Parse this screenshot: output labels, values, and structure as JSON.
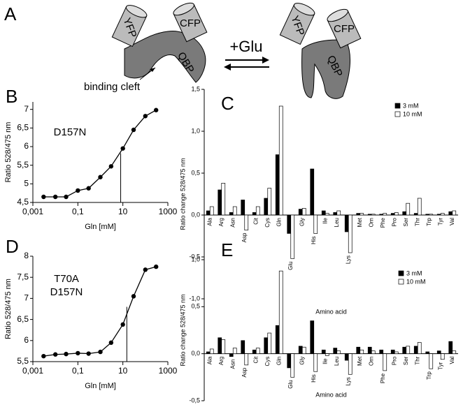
{
  "diagram": {
    "panel": "A",
    "left": {
      "yfp": "YFP",
      "cfp": "CFP",
      "qbp": "QBP",
      "cleft": "binding cleft"
    },
    "reaction": "+Glu",
    "right": {
      "yfp": "YFP",
      "cfp": "CFP",
      "qbp": "QBP"
    }
  },
  "chart_data": [
    {
      "type": "scatter",
      "panel": "B",
      "annotation": [
        "D157N"
      ],
      "xlabel": "Gln [mM]",
      "ylabel": "Ratio 528/475 nm",
      "log_x": true,
      "color": "#000000",
      "x": [
        0.003,
        0.01,
        0.03,
        0.1,
        0.3,
        1,
        3,
        10,
        30,
        100,
        300
      ],
      "values": [
        4.65,
        4.65,
        4.65,
        4.82,
        4.88,
        5.18,
        5.47,
        5.95,
        6.45,
        6.82,
        6.98
      ],
      "reference_line": {
        "x": 8,
        "y": 5.82
      },
      "xlim": [
        0.001,
        1000
      ],
      "xticks": [
        {
          "value": 0.001,
          "label": "0,001"
        },
        {
          "value": 0.1,
          "label": "0,1"
        },
        10,
        1000
      ],
      "ylim": [
        4.5,
        7.2
      ],
      "yticks": [
        {
          "value": 4.5,
          "label": "4,5"
        },
        5,
        {
          "value": 5.5,
          "label": "5,5"
        },
        6,
        {
          "value": 6.5,
          "label": "6,5"
        },
        7
      ]
    },
    {
      "type": "bar",
      "panel": "C",
      "xlabel": "Amino acid",
      "ylabel": "Ratio change 528/475 nm",
      "categories": [
        "Ala",
        "Arg",
        "Asn",
        "Asp",
        "Cit",
        "Cys",
        "Gln",
        "Glu",
        "Gly",
        "His",
        "Ile",
        "Leu",
        "Lys",
        "Met",
        "Orn",
        "Phe",
        "Pro",
        "Ser",
        "Thr",
        "Trp",
        "Tyr",
        "Val"
      ],
      "series": [
        {
          "name": "3 mM",
          "color": "#000000",
          "values": [
            0.05,
            0.3,
            0.03,
            0.18,
            0.03,
            0.2,
            0.72,
            -0.22,
            0.07,
            0.55,
            0.05,
            0.03,
            -0.2,
            0.02,
            0.01,
            0.01,
            0.02,
            0.04,
            0.02,
            0.01,
            0.01,
            0.04
          ]
        },
        {
          "name": "10 mM",
          "color": "#ffffff",
          "values": [
            0.1,
            0.38,
            0.1,
            -0.18,
            0.1,
            0.32,
            1.3,
            -0.52,
            0.08,
            -0.22,
            0.02,
            0.05,
            -0.45,
            0.02,
            0.01,
            0.02,
            0.03,
            0.14,
            0.2,
            0.01,
            0.02,
            0.05
          ]
        }
      ],
      "ylim": [
        -1,
        1.5
      ],
      "yticks": [
        {
          "value": -1,
          "label": "-1,0"
        },
        {
          "value": -0.5,
          "label": "-0,5"
        },
        {
          "value": 0,
          "label": "0,0"
        },
        {
          "value": 0.5,
          "label": "0,5"
        },
        {
          "value": 1,
          "label": "1,0"
        },
        {
          "value": 1.5,
          "label": "1,5"
        }
      ]
    },
    {
      "type": "scatter",
      "panel": "D",
      "annotation": [
        "T70A",
        "D157N"
      ],
      "xlabel": "Gln [mM]",
      "ylabel": "Ratio 528/475 nm",
      "log_x": true,
      "color": "#000000",
      "x": [
        0.003,
        0.01,
        0.03,
        0.1,
        0.3,
        1,
        3,
        10,
        30,
        100,
        300
      ],
      "values": [
        5.63,
        5.67,
        5.68,
        5.7,
        5.69,
        5.73,
        5.95,
        6.38,
        7.05,
        7.68,
        7.75
      ],
      "reference_line": {
        "x": 15,
        "y": 6.8
      },
      "xlim": [
        0.001,
        1000
      ],
      "xticks": [
        {
          "value": 0.001,
          "label": "0,001"
        },
        {
          "value": 0.1,
          "label": "0,1"
        },
        10,
        1000
      ],
      "ylim": [
        5.5,
        8
      ],
      "yticks": [
        {
          "value": 5.5,
          "label": "5,5"
        },
        6,
        {
          "value": 6.5,
          "label": "6,5"
        },
        7,
        {
          "value": 7.5,
          "label": "7,5"
        },
        8
      ]
    },
    {
      "type": "bar",
      "panel": "E",
      "xlabel": "Amino acid",
      "ylabel": "Ratio change 528/475 nm",
      "categories": [
        "Ala",
        "Arg",
        "Asn",
        "Asp",
        "Cit",
        "Cys",
        "Gln",
        "Glu",
        "Gly",
        "His",
        "Ile",
        "Leu",
        "Lys",
        "Met",
        "Orn",
        "Phe",
        "Pro",
        "Ser",
        "Thr",
        "Trp",
        "Tyr",
        "Val"
      ],
      "series": [
        {
          "name": "3 mM",
          "color": "#000000",
          "values": [
            0.02,
            0.17,
            -0.03,
            0.14,
            0.04,
            0.17,
            0.3,
            -0.15,
            0.08,
            0.35,
            0.04,
            0.06,
            -0.07,
            0.07,
            0.07,
            0.04,
            0.04,
            0.07,
            0.08,
            0.02,
            0.03,
            0.13
          ]
        },
        {
          "name": "10 mM",
          "color": "#ffffff",
          "values": [
            0.05,
            0.15,
            0.06,
            -0.12,
            0.06,
            0.22,
            0.88,
            -0.25,
            0.07,
            -0.19,
            -0.02,
            0.03,
            -0.22,
            0.04,
            0.03,
            -0.18,
            0.02,
            0.08,
            0.12,
            -0.16,
            -0.06,
            0.03
          ]
        }
      ],
      "ylim": [
        -0.5,
        1
      ],
      "yticks": [
        {
          "value": -0.5,
          "label": "-0,5"
        },
        {
          "value": 0,
          "label": "0,0"
        },
        {
          "value": 0.5,
          "label": "0,5"
        },
        {
          "value": 1,
          "label": "1,0"
        }
      ]
    }
  ]
}
